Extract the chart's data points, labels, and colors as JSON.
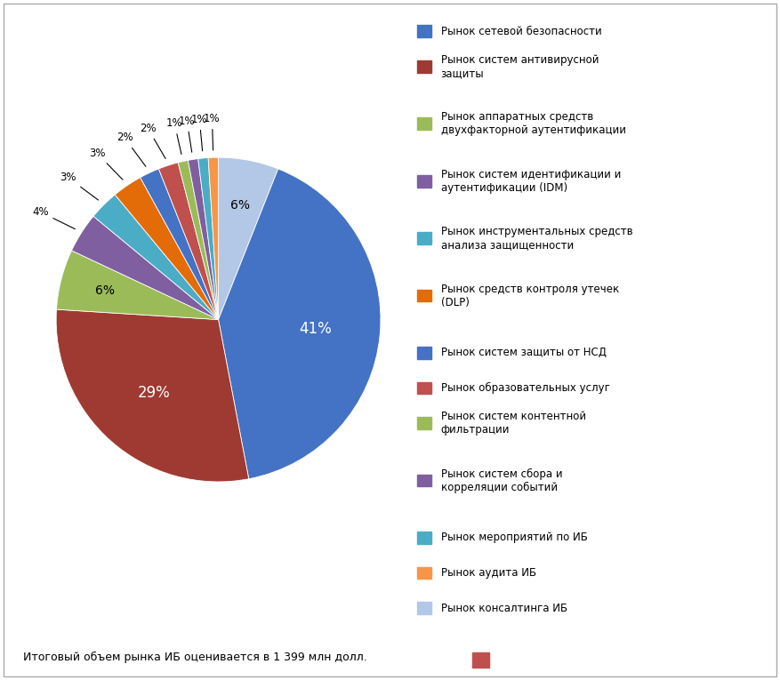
{
  "segments": [
    {
      "label": "Рынок консалтинга ИБ",
      "pct": 6,
      "color": "#B3C7E6"
    },
    {
      "label": "Рынок сетевой безопасности",
      "pct": 41,
      "color": "#4472C4"
    },
    {
      "label": "Рынок систем антивирусной\nзащиты",
      "pct": 29,
      "color": "#9E3A32"
    },
    {
      "label": "Рынок аппаратных средств\nдвухфакторной аутентификации",
      "pct": 6,
      "color": "#9BBB59"
    },
    {
      "label": "Рынок систем идентификации и\nаутентификации (IDM)",
      "pct": 4,
      "color": "#7F5FA0"
    },
    {
      "label": "Рынок инструментальных средств\nанализа защищенности",
      "pct": 3,
      "color": "#4BACC6"
    },
    {
      "label": "Рынок средств контроля утечек\n(DLP)",
      "pct": 3,
      "color": "#E36C09"
    },
    {
      "label": "Рынок систем защиты от НСД",
      "pct": 2,
      "color": "#4472C4"
    },
    {
      "label": "Рынок образовательных услуг",
      "pct": 2,
      "color": "#C0504D"
    },
    {
      "label": "Рынок систем контентной\nфильтрации",
      "pct": 1,
      "color": "#9BBB59"
    },
    {
      "label": "Рынок систем сбора и\nкорреляции событий",
      "pct": 1,
      "color": "#7F5FA0"
    },
    {
      "label": "Рынок мероприятий по ИБ",
      "pct": 1,
      "color": "#4BACC6"
    },
    {
      "label": "Рынок аудита ИБ",
      "pct": 1,
      "color": "#F79646"
    }
  ],
  "legend_entries": [
    {
      "label": "Рынок сетевой безопасности",
      "color": "#4472C4"
    },
    {
      "label": "Рынок систем антивирусной\nзащиты",
      "color": "#9E3A32"
    },
    {
      "label": "Рынок аппаратных средств\nдвухфакторной аутентификации",
      "color": "#9BBB59"
    },
    {
      "label": "Рынок систем идентификации и\nаутентификации (IDM)",
      "color": "#7F5FA0"
    },
    {
      "label": "Рынок инструментальных средств\nанализа защищенности",
      "color": "#4BACC6"
    },
    {
      "label": "Рынок средств контроля утечек\n(DLP)",
      "color": "#E36C09"
    },
    {
      "label": "Рынок систем защиты от НСД",
      "color": "#4472C4"
    },
    {
      "label": "Рынок образовательных услуг",
      "color": "#C0504D"
    },
    {
      "label": "Рынок систем контентной\nфильтрации",
      "color": "#9BBB59"
    },
    {
      "label": "Рынок систем сбора и\nкорреляции событий",
      "color": "#7F5FA0"
    },
    {
      "label": "Рынок мероприятий по ИБ",
      "color": "#4BACC6"
    },
    {
      "label": "Рынок аудита ИБ",
      "color": "#F79646"
    },
    {
      "label": "Рынок консалтинга ИБ",
      "color": "#B3C7E6"
    }
  ],
  "footer_text": "Итоговый объем рынка ИБ оценивается в 1 399 млн долл.",
  "footer_square_color": "#C0504D",
  "bg_color": "#FFFFFF",
  "border_color": "#AAAAAA"
}
